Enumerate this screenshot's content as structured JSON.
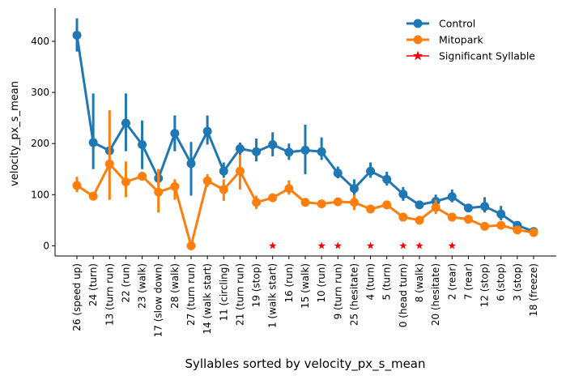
{
  "chart_data": {
    "type": "line",
    "title": "",
    "xlabel": "Syllables sorted by velocity_px_s_mean",
    "ylabel": "velocity_px_s_mean",
    "ylim": [
      -20,
      465
    ],
    "yticks": [
      0,
      100,
      200,
      300,
      400
    ],
    "grid": false,
    "legend_position": "top-right",
    "categories": [
      "26 (speed up)",
      "24 (turn)",
      "13 (turn run)",
      "22 (run)",
      "23 (walk)",
      "17 (slow down)",
      "28 (walk)",
      "27 (turn run)",
      "14 (walk start)",
      "11 (circling)",
      "21 (turn run)",
      "19 (stop)",
      "1 (walk start)",
      "16 (run)",
      "15 (walk)",
      "10 (run)",
      "9 (turn run)",
      "25 (hesitate)",
      "4 (turn)",
      "5 (turn)",
      "0 (head turn)",
      "8 (walk)",
      "20 (hesitate)",
      "2 (rear)",
      "7 (rear)",
      "12 (stop)",
      "6 (stop)",
      "3 (stop)",
      "18 (freeze)"
    ],
    "series": [
      {
        "name": "Control",
        "color": "#1f77b4",
        "values": [
          412,
          202,
          186,
          240,
          198,
          132,
          220,
          161,
          224,
          146,
          190,
          184,
          198,
          183,
          187,
          184,
          142,
          112,
          146,
          130,
          101,
          80,
          87,
          96,
          74,
          77,
          62,
          40,
          28
        ],
        "lower": [
          380,
          150,
          178,
          185,
          150,
          118,
          185,
          98,
          198,
          133,
          178,
          165,
          175,
          168,
          140,
          168,
          132,
          98,
          133,
          118,
          88,
          75,
          78,
          85,
          68,
          65,
          50,
          35,
          22
        ],
        "upper": [
          445,
          298,
          194,
          298,
          245,
          150,
          255,
          203,
          255,
          163,
          202,
          210,
          222,
          200,
          237,
          212,
          155,
          130,
          163,
          145,
          115,
          87,
          100,
          110,
          80,
          95,
          78,
          45,
          33
        ]
      },
      {
        "name": "Mitopark",
        "color": "#ff7f0e",
        "values": [
          118,
          97,
          160,
          125,
          136,
          105,
          116,
          0,
          127,
          110,
          146,
          85,
          94,
          112,
          85,
          82,
          86,
          85,
          72,
          80,
          56,
          50,
          75,
          56,
          52,
          38,
          40,
          31,
          26
        ],
        "lower": [
          105,
          92,
          90,
          95,
          128,
          65,
          90,
          0,
          115,
          88,
          110,
          72,
          88,
          100,
          80,
          77,
          80,
          70,
          65,
          74,
          52,
          45,
          62,
          50,
          48,
          33,
          35,
          26,
          20
        ],
        "upper": [
          135,
          102,
          265,
          165,
          145,
          150,
          130,
          0,
          140,
          130,
          178,
          98,
          100,
          128,
          90,
          87,
          92,
          100,
          78,
          86,
          60,
          55,
          90,
          62,
          56,
          43,
          45,
          36,
          32
        ]
      }
    ],
    "significant": {
      "name": "Significant Syllable",
      "color": "#ff0000",
      "indices": [
        12,
        15,
        16,
        18,
        20,
        21,
        23
      ],
      "value": 0
    }
  }
}
